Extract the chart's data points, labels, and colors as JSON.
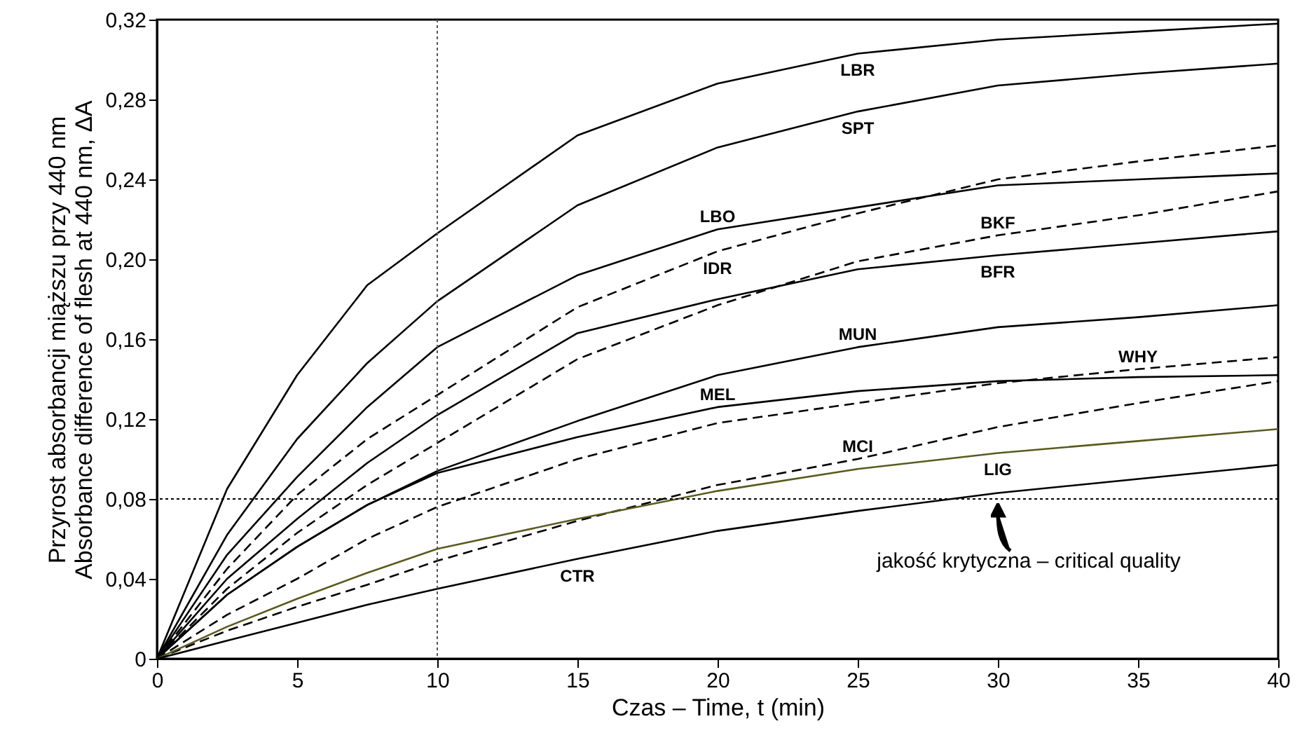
{
  "chart_data": {
    "type": "line",
    "xlabel": "Czas – Time,  t  (min)",
    "ylabel": "Przyrost absorbancji miąższu przy 440 nm\nAbsorbance difference of flesh at 440 nm,  ΔA",
    "x": [
      0,
      2.5,
      5,
      7.5,
      10,
      15,
      20,
      25,
      30,
      35,
      40
    ],
    "xlim": [
      0,
      40
    ],
    "xticks": [
      0,
      5,
      10,
      15,
      20,
      25,
      30,
      35,
      40
    ],
    "ylim": [
      0,
      0.32
    ],
    "yticks": [
      0,
      {
        "value": 0.04,
        "label": "0,04"
      },
      {
        "value": 0.08,
        "label": "0,08"
      },
      {
        "value": 0.12,
        "label": "0,12"
      },
      {
        "value": 0.16,
        "label": "0,16"
      },
      {
        "value": 0.2,
        "label": "0,20"
      },
      {
        "value": 0.24,
        "label": "0,24"
      },
      {
        "value": 0.28,
        "label": "0,28"
      },
      {
        "value": 0.32,
        "label": "0,32"
      }
    ],
    "grid": false,
    "marker": "none",
    "series": [
      {
        "name": "LBR",
        "color": "#000000",
        "line_style": "solid",
        "values": [
          0,
          0.085,
          0.142,
          0.187,
          0.213,
          0.262,
          0.288,
          0.303,
          0.31,
          0.314,
          0.318
        ]
      },
      {
        "name": "SPT",
        "color": "#000000",
        "line_style": "solid",
        "values": [
          0,
          0.062,
          0.11,
          0.148,
          0.179,
          0.227,
          0.256,
          0.274,
          0.287,
          0.293,
          0.298
        ]
      },
      {
        "name": "LBO",
        "color": "#000000",
        "line_style": "solid",
        "values": [
          0,
          0.052,
          0.091,
          0.126,
          0.156,
          0.192,
          0.215,
          0.226,
          0.237,
          0.24,
          0.243
        ]
      },
      {
        "name": "IDR",
        "color": "#000000",
        "line_style": "dashed",
        "values": [
          0,
          0.045,
          0.082,
          0.11,
          0.132,
          0.176,
          0.204,
          0.223,
          0.24,
          0.249,
          0.257
        ]
      },
      {
        "name": "BKF",
        "color": "#000000",
        "line_style": "dashed",
        "values": [
          0,
          0.035,
          0.063,
          0.087,
          0.108,
          0.15,
          0.177,
          0.199,
          0.212,
          0.222,
          0.234
        ]
      },
      {
        "name": "BFR",
        "color": "#000000",
        "line_style": "solid",
        "values": [
          0,
          0.04,
          0.07,
          0.098,
          0.122,
          0.163,
          0.18,
          0.195,
          0.202,
          0.208,
          0.214
        ]
      },
      {
        "name": "MUN",
        "color": "#000000",
        "line_style": "solid",
        "values": [
          0,
          0.032,
          0.056,
          0.077,
          0.094,
          0.119,
          0.142,
          0.156,
          0.166,
          0.171,
          0.177
        ]
      },
      {
        "name": "WHY",
        "color": "#000000",
        "line_style": "dashed",
        "values": [
          0,
          0.022,
          0.04,
          0.06,
          0.076,
          0.1,
          0.118,
          0.128,
          0.138,
          0.145,
          0.151
        ]
      },
      {
        "name": "MCI",
        "color": "#000000",
        "line_style": "dashed",
        "values": [
          0,
          0.014,
          0.026,
          0.037,
          0.049,
          0.069,
          0.087,
          0.1,
          0.116,
          0.128,
          0.139
        ]
      },
      {
        "name": "MEL",
        "color": "#000000",
        "line_style": "solid",
        "values": [
          0,
          0.032,
          0.056,
          0.077,
          0.093,
          0.111,
          0.126,
          0.134,
          0.139,
          0.141,
          0.142
        ]
      },
      {
        "name": "LIG",
        "color": "#5a5a1e",
        "line_style": "solid",
        "values": [
          0,
          0.016,
          0.03,
          0.043,
          0.055,
          0.07,
          0.084,
          0.095,
          0.103,
          0.109,
          0.115
        ]
      },
      {
        "name": "CTR",
        "color": "#000000",
        "line_style": "solid",
        "values": [
          0,
          0.009,
          0.018,
          0.027,
          0.035,
          0.05,
          0.064,
          0.074,
          0.083,
          0.09,
          0.097
        ]
      }
    ],
    "ref_lines": [
      {
        "axis": "x",
        "value": 10,
        "line_style": "dotted",
        "color": "#555555"
      },
      {
        "axis": "y",
        "value": 0.08,
        "line_style": "dotted",
        "color": "#000000"
      }
    ],
    "annotations": [
      {
        "text": "jakość krytyczna – critical quality",
        "x": 30,
        "y": 0.08
      }
    ]
  }
}
